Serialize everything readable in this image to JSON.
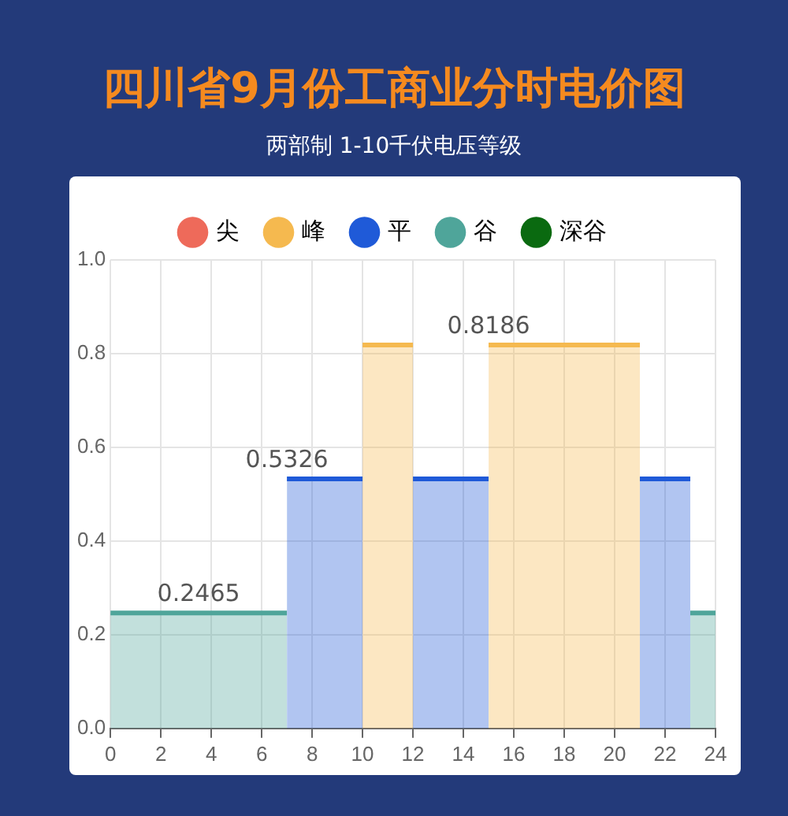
{
  "chart_data": {
    "type": "area",
    "title": "四川省9月份工商业分时电价图",
    "subtitle": "两部制 1-10千伏电压等级",
    "xlim": [
      0,
      24
    ],
    "xticks": [
      0,
      2,
      4,
      6,
      8,
      10,
      12,
      14,
      16,
      18,
      20,
      22,
      24
    ],
    "ylim": [
      0,
      1
    ],
    "yticks": [
      {
        "value": 0,
        "label": "0.0"
      },
      {
        "value": 0.2,
        "label": "0.2"
      },
      {
        "value": 0.4,
        "label": "0.4"
      },
      {
        "value": 0.6,
        "label": "0.6"
      },
      {
        "value": 0.8,
        "label": "0.8"
      },
      {
        "value": 1,
        "label": "1.0"
      }
    ],
    "grid": true,
    "legend": "top",
    "line_style": "solid",
    "marker": "none",
    "series": [
      {
        "name": "尖",
        "color": "#ee6a5a"
      },
      {
        "name": "峰",
        "color": "#f5b94f",
        "x": [
          10,
          12,
          null,
          15,
          21
        ],
        "values": [
          0.8186,
          0.8186,
          null,
          0.8186,
          0.8186
        ],
        "value_labels": [
          null,
          null,
          null,
          "0.8186",
          null
        ]
      },
      {
        "name": "平",
        "color": "#1f5ad8",
        "x": [
          7,
          10,
          null,
          12,
          15,
          null,
          21,
          23
        ],
        "values": [
          0.5326,
          0.5326,
          null,
          0.5326,
          0.5326,
          null,
          0.5326,
          0.5326
        ],
        "value_labels": [
          "0.5326",
          null,
          null,
          null,
          null,
          null,
          null,
          null
        ]
      },
      {
        "name": "谷",
        "color": "#4fa59a",
        "x": [
          0,
          3.5,
          7,
          null,
          23,
          24
        ],
        "values": [
          0.2465,
          0.2465,
          0.2465,
          null,
          0.2465,
          0.2465
        ],
        "value_labels": [
          null,
          "0.2465",
          null,
          null,
          null,
          null
        ]
      },
      {
        "name": "深谷",
        "color": "#0a6a10"
      }
    ]
  }
}
